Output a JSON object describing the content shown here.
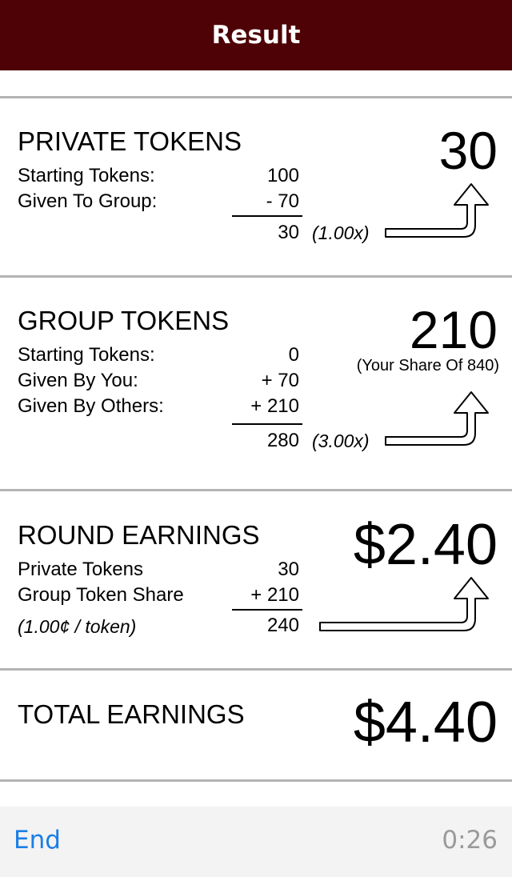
{
  "header": {
    "title": "Result"
  },
  "private": {
    "title": "PRIVATE TOKENS",
    "rows": [
      {
        "label": "Starting Tokens:",
        "value": "100"
      },
      {
        "label": "Given To Group:",
        "value": "- 70"
      }
    ],
    "total": "30",
    "multiplier": "(1.00x)",
    "big_value": "30"
  },
  "group": {
    "title": "GROUP TOKENS",
    "rows": [
      {
        "label": "Starting Tokens:",
        "value": "0"
      },
      {
        "label": "Given By You:",
        "value": "+ 70"
      },
      {
        "label": "Given By Others:",
        "value": "+ 210"
      }
    ],
    "total": "280",
    "multiplier": "(3.00x)",
    "big_value": "210",
    "share_note": "(Your Share Of 840)"
  },
  "round": {
    "title": "ROUND EARNINGS",
    "rows": [
      {
        "label": "Private Tokens",
        "value": "30"
      },
      {
        "label": "Group Token Share",
        "value": "+ 210"
      }
    ],
    "rate": "(1.00¢ / token)",
    "total": "240",
    "big_value": "$2.40"
  },
  "total_earnings": {
    "title": "TOTAL EARNINGS",
    "big_value": "$4.40"
  },
  "footer": {
    "end_label": "End",
    "timer": "0:26"
  }
}
